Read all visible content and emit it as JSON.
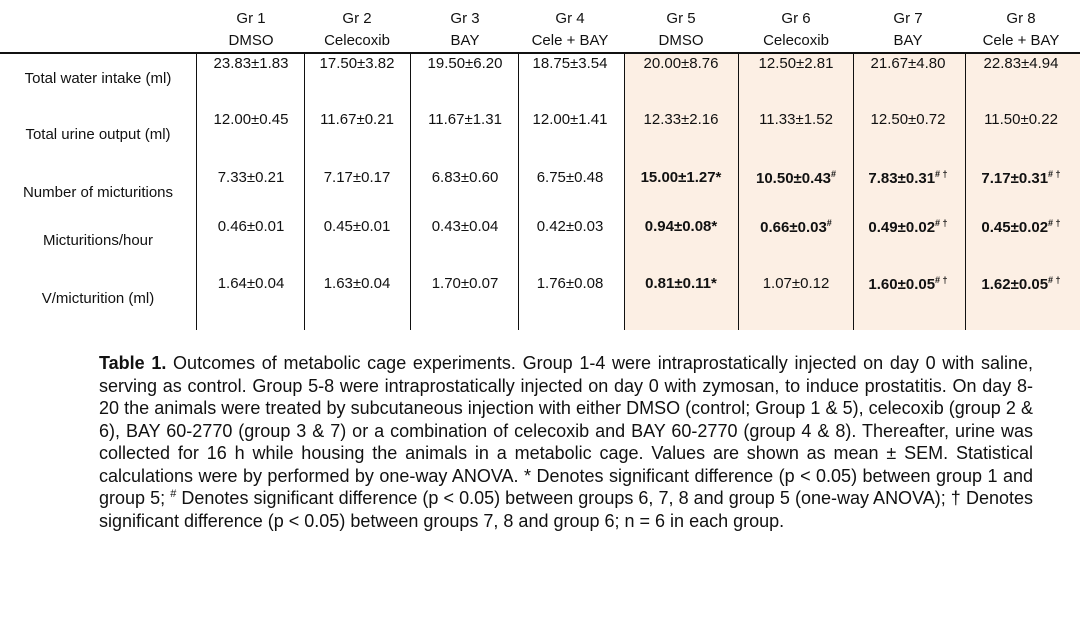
{
  "headers": [
    {
      "group": "Gr 1",
      "treatment": "DMSO"
    },
    {
      "group": "Gr 2",
      "treatment": "Celecoxib"
    },
    {
      "group": "Gr 3",
      "treatment": "BAY"
    },
    {
      "group": "Gr 4",
      "treatment": "Cele + BAY"
    },
    {
      "group": "Gr 5",
      "treatment": "DMSO"
    },
    {
      "group": "Gr 6",
      "treatment": "Celecoxib"
    },
    {
      "group": "Gr 7",
      "treatment": "BAY"
    },
    {
      "group": "Gr 8",
      "treatment": "Cele + BAY"
    }
  ],
  "rows": [
    {
      "label": "Total water intake (ml)",
      "cells": [
        "23.83±1.83",
        "17.50±3.82",
        "19.50±6.20",
        "18.75±3.54",
        "20.00±8.76",
        "12.50±2.81",
        "21.67±4.80",
        "22.83±4.94"
      ],
      "marks": [
        "",
        "",
        "",
        "",
        "",
        "",
        "",
        ""
      ],
      "bold": [
        false,
        false,
        false,
        false,
        false,
        false,
        false,
        false
      ]
    },
    {
      "label": "Total urine output (ml)",
      "cells": [
        "12.00±0.45",
        "11.67±0.21",
        "11.67±1.31",
        "12.00±1.41",
        "12.33±2.16",
        "11.33±1.52",
        "12.50±0.72",
        "11.50±0.22"
      ],
      "marks": [
        "",
        "",
        "",
        "",
        "",
        "",
        "",
        ""
      ],
      "bold": [
        false,
        false,
        false,
        false,
        false,
        false,
        false,
        false
      ]
    },
    {
      "label": "Number of micturitions",
      "cells": [
        "7.33±0.21",
        "7.17±0.17",
        "6.83±0.60",
        "6.75±0.48",
        "15.00±1.27*",
        "10.50±0.43",
        "7.83±0.31",
        "7.17±0.31"
      ],
      "marks": [
        "",
        "",
        "",
        "",
        "",
        "#",
        "# †",
        "# †"
      ],
      "bold": [
        false,
        false,
        false,
        false,
        true,
        true,
        true,
        true
      ]
    },
    {
      "label": "Micturitions/hour",
      "cells": [
        "0.46±0.01",
        "0.45±0.01",
        "0.43±0.04",
        "0.42±0.03",
        "0.94±0.08*",
        "0.66±0.03",
        "0.49±0.02",
        "0.45±0.02"
      ],
      "marks": [
        "",
        "",
        "",
        "",
        "",
        "#",
        "# †",
        "# †"
      ],
      "bold": [
        false,
        false,
        false,
        false,
        true,
        true,
        true,
        true
      ]
    },
    {
      "label": "V/micturition (ml)",
      "cells": [
        "1.64±0.04",
        "1.63±0.04",
        "1.70±0.07",
        "1.76±0.08",
        "0.81±0.11*",
        "1.07±0.12",
        "1.60±0.05",
        "1.62±0.05"
      ],
      "marks": [
        "",
        "",
        "",
        "",
        "",
        "",
        "# †",
        "# †"
      ],
      "bold": [
        false,
        false,
        false,
        false,
        true,
        false,
        true,
        true
      ]
    }
  ],
  "caption": {
    "label": "Table 1.",
    "p1": " Outcomes of metabolic cage experiments. Group 1-4 were intraprostatically injected on day 0 with saline, serving as control. Group 5-8 were intraprostatically injected on day 0 with zymosan, to induce prostatitis. On day 8-20 the animals were treated by subcutaneous injection with either DMSO (control; Group 1 & 5), celecoxib (group 2 & 6), BAY 60-2770 (group 3 & 7) or a combination of celecoxib and BAY 60-2770 (group 4 & 8). Thereafter, urine was collected for 16 h while housing the animals in a metabolic cage. Values are shown as mean ± SEM. Statistical calculations were by performed by one-way ANOVA. * Denotes significant difference (p < 0.05) between group 1 and group 5; ",
    "hash": "#",
    "p2": " Denotes significant difference (p < 0.05) between groups 6, 7, 8 and group 5 (one-way ANOVA); † Denotes significant difference (p < 0.05) between groups 7, 8 and group 6; n = 6 in each group."
  }
}
